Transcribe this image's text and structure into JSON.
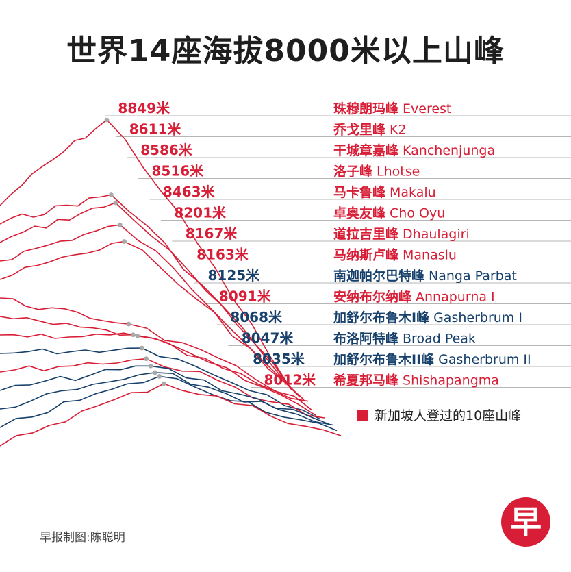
{
  "title": "世界14座海拔8000米以上山峰",
  "colors": {
    "climbed": "#d81e36",
    "not_climbed": "#17406b",
    "point": "#a9a9a9",
    "gridline": "#b5b5b5",
    "logo": "#d81e36"
  },
  "legend": {
    "label": "新加坡人登过的10座山峰"
  },
  "credit": "早报制图:陈聪明",
  "logo": {
    "glyph": "早"
  },
  "chart_data": {
    "type": "line",
    "y_unit": "米",
    "categories": [
      "珠穆朗玛峰 Everest",
      "乔戈里峰 K2",
      "干城章嘉峰 Kanchenjunga",
      "洛子峰 Lhotse",
      "马卡鲁峰 Makalu",
      "卓奥友峰 Cho Oyu",
      "道拉吉里峰 Dhaulagiri",
      "马纳斯卢峰 Manaslu",
      "南迦帕尔巴特峰 Nanga Parbat",
      "安纳布尔纳峰 Annapurna I",
      "加舒尔布鲁木I峰 Gasherbrum I",
      "布洛阿特峰 Broad Peak",
      "加舒尔布鲁木II峰 Gasherbrum II",
      "希夏邦马峰 Shishapangma"
    ],
    "peaks": [
      {
        "height": 8849,
        "height_label": "8849米",
        "name_cn": "珠穆朗玛峰",
        "name_en": "Everest",
        "climbed_by_singaporeans": true
      },
      {
        "height": 8611,
        "height_label": "8611米",
        "name_cn": "乔戈里峰",
        "name_en": "K2",
        "climbed_by_singaporeans": true
      },
      {
        "height": 8586,
        "height_label": "8586米",
        "name_cn": "干城章嘉峰",
        "name_en": "Kanchenjunga",
        "climbed_by_singaporeans": true
      },
      {
        "height": 8516,
        "height_label": "8516米",
        "name_cn": "洛子峰",
        "name_en": "Lhotse",
        "climbed_by_singaporeans": true
      },
      {
        "height": 8463,
        "height_label": "8463米",
        "name_cn": "马卡鲁峰",
        "name_en": "Makalu",
        "climbed_by_singaporeans": true
      },
      {
        "height": 8201,
        "height_label": "8201米",
        "name_cn": "卓奥友峰",
        "name_en": "Cho Oyu",
        "climbed_by_singaporeans": true
      },
      {
        "height": 8167,
        "height_label": "8167米",
        "name_cn": "道拉吉里峰",
        "name_en": "Dhaulagiri",
        "climbed_by_singaporeans": true
      },
      {
        "height": 8163,
        "height_label": "8163米",
        "name_cn": "马纳斯卢峰",
        "name_en": "Manaslu",
        "climbed_by_singaporeans": true
      },
      {
        "height": 8125,
        "height_label": "8125米",
        "name_cn": "南迦帕尔巴特峰",
        "name_en": "Nanga Parbat",
        "climbed_by_singaporeans": false
      },
      {
        "height": 8091,
        "height_label": "8091米",
        "name_cn": "安纳布尔纳峰",
        "name_en": "Annapurna I",
        "climbed_by_singaporeans": true
      },
      {
        "height": 8068,
        "height_label": "8068米",
        "name_cn": "加舒尔布鲁木I峰",
        "name_en": "Gasherbrum I",
        "climbed_by_singaporeans": false
      },
      {
        "height": 8047,
        "height_label": "8047米",
        "name_cn": "布洛阿特峰",
        "name_en": "Broad Peak",
        "climbed_by_singaporeans": false
      },
      {
        "height": 8035,
        "height_label": "8035米",
        "name_cn": "加舒尔布鲁木II峰",
        "name_en": "Gasherbrum II",
        "climbed_by_singaporeans": false
      },
      {
        "height": 8012,
        "height_label": "8012米",
        "name_cn": "希夏邦马峰",
        "name_en": "Shishapangma",
        "climbed_by_singaporeans": true
      }
    ]
  }
}
